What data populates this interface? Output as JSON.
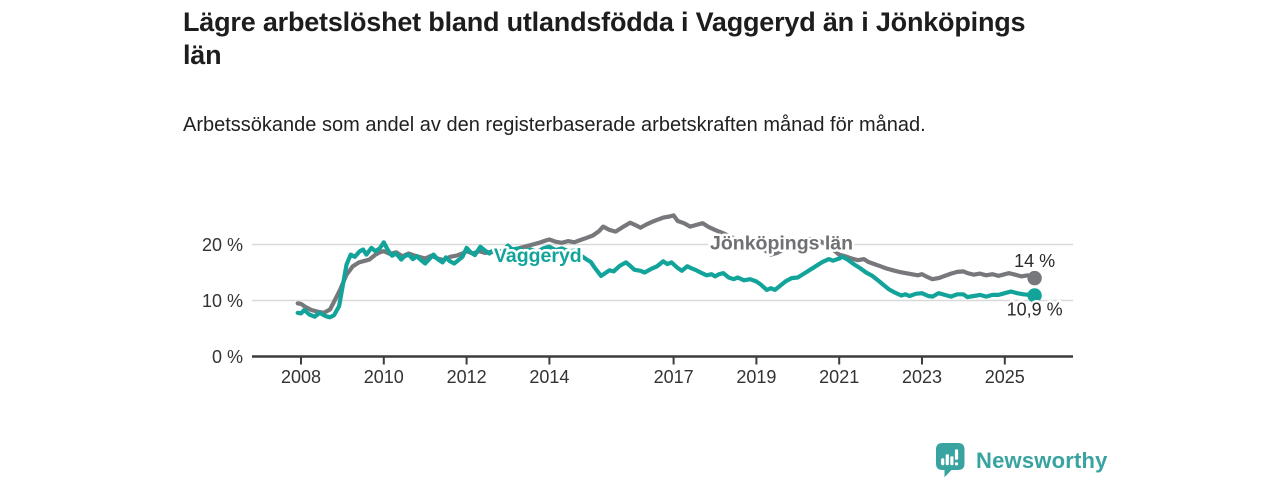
{
  "header": {
    "title": "Lägre arbetslöshet bland utlandsfödda i Vaggeryd än i Jönköpings län",
    "subtitle": "Arbetssökande som andel av den registerbaserade arbetskraften månad för månad."
  },
  "chart_data": {
    "type": "line",
    "title": "Lägre arbetslöshet bland utlandsfödda i Vaggeryd än i Jönköpings län",
    "subtitle": "Arbetssökande som andel av den registerbaserade arbetskraften månad för månad.",
    "x_unit": "year (monthly observations)",
    "y_unit": "percent",
    "xlim": [
      2007.9,
      2026.2
    ],
    "ylim": [
      0,
      27
    ],
    "grid": "horizontal",
    "legend_position": "inline-labels",
    "colors": {
      "gridline": "#d9d9d9",
      "axis": "#3c3c3c",
      "tick_text": "#333333",
      "annotation_text": "#2b2b2b"
    },
    "y_ticks": [
      {
        "value": 0,
        "label": "0 %"
      },
      {
        "value": 10,
        "label": "10 %"
      },
      {
        "value": 20,
        "label": "20 %"
      }
    ],
    "x_ticks": [
      {
        "value": 2008,
        "label": "2008"
      },
      {
        "value": 2010,
        "label": "2010"
      },
      {
        "value": 2012,
        "label": "2012"
      },
      {
        "value": 2014,
        "label": "2014"
      },
      {
        "value": 2017,
        "label": "2017"
      },
      {
        "value": 2019,
        "label": "2019"
      },
      {
        "value": 2021,
        "label": "2021"
      },
      {
        "value": 2023,
        "label": "2023"
      },
      {
        "value": 2025,
        "label": "2025"
      }
    ],
    "series": [
      {
        "name": "Jönköpings län",
        "color": "#77787b",
        "label_color": "#6f7073",
        "end_label": "14 %",
        "end_value": 14.0,
        "end_label_position": "above",
        "label_anchor": {
          "t": 2017.88,
          "v": 19.1
        },
        "points": [
          [
            2007.92,
            9.5
          ],
          [
            2008.0,
            9.4
          ],
          [
            2008.1,
            8.9
          ],
          [
            2008.25,
            8.3
          ],
          [
            2008.4,
            8.0
          ],
          [
            2008.55,
            7.8
          ],
          [
            2008.7,
            8.4
          ],
          [
            2008.8,
            9.8
          ],
          [
            2008.95,
            12.0
          ],
          [
            2009.1,
            14.6
          ],
          [
            2009.25,
            16.1
          ],
          [
            2009.4,
            16.8
          ],
          [
            2009.55,
            17.1
          ],
          [
            2009.65,
            17.3
          ],
          [
            2009.8,
            18.2
          ],
          [
            2009.9,
            18.6
          ],
          [
            2010.0,
            18.8
          ],
          [
            2010.15,
            18.3
          ],
          [
            2010.3,
            18.6
          ],
          [
            2010.45,
            17.9
          ],
          [
            2010.6,
            18.4
          ],
          [
            2010.75,
            18.0
          ],
          [
            2010.9,
            17.7
          ],
          [
            2011.0,
            17.5
          ],
          [
            2011.15,
            18.0
          ],
          [
            2011.3,
            17.5
          ],
          [
            2011.45,
            17.2
          ],
          [
            2011.6,
            17.8
          ],
          [
            2011.75,
            18.0
          ],
          [
            2011.9,
            18.4
          ],
          [
            2012.0,
            18.8
          ],
          [
            2012.15,
            18.4
          ],
          [
            2012.3,
            18.8
          ],
          [
            2012.45,
            18.5
          ],
          [
            2012.6,
            18.7
          ],
          [
            2012.75,
            18.5
          ],
          [
            2012.9,
            18.9
          ],
          [
            2013.0,
            19.4
          ],
          [
            2013.15,
            19.1
          ],
          [
            2013.3,
            19.4
          ],
          [
            2013.45,
            19.7
          ],
          [
            2013.6,
            20.0
          ],
          [
            2013.75,
            20.3
          ],
          [
            2013.9,
            20.7
          ],
          [
            2014.0,
            20.9
          ],
          [
            2014.15,
            20.5
          ],
          [
            2014.3,
            20.3
          ],
          [
            2014.45,
            20.6
          ],
          [
            2014.6,
            20.4
          ],
          [
            2014.75,
            20.8
          ],
          [
            2014.9,
            21.2
          ],
          [
            2015.05,
            21.6
          ],
          [
            2015.2,
            22.4
          ],
          [
            2015.3,
            23.2
          ],
          [
            2015.45,
            22.6
          ],
          [
            2015.6,
            22.3
          ],
          [
            2015.75,
            23.0
          ],
          [
            2015.95,
            23.9
          ],
          [
            2016.1,
            23.4
          ],
          [
            2016.2,
            23.0
          ],
          [
            2016.35,
            23.6
          ],
          [
            2016.5,
            24.1
          ],
          [
            2016.6,
            24.4
          ],
          [
            2016.75,
            24.8
          ],
          [
            2016.9,
            25.0
          ],
          [
            2017.0,
            25.2
          ],
          [
            2017.1,
            24.2
          ],
          [
            2017.25,
            23.8
          ],
          [
            2017.4,
            23.2
          ],
          [
            2017.55,
            23.5
          ],
          [
            2017.7,
            23.8
          ],
          [
            2017.85,
            23.1
          ],
          [
            2018.0,
            22.6
          ],
          [
            2018.2,
            22.0
          ],
          [
            2018.4,
            21.3
          ],
          [
            2018.6,
            20.6
          ],
          [
            2018.8,
            20.2
          ],
          [
            2019.0,
            19.8
          ],
          [
            2019.2,
            19.0
          ],
          [
            2019.35,
            18.2
          ],
          [
            2019.5,
            18.5
          ],
          [
            2019.7,
            19.3
          ],
          [
            2019.9,
            20.2
          ],
          [
            2020.1,
            20.8
          ],
          [
            2020.3,
            21.0
          ],
          [
            2020.5,
            20.7
          ],
          [
            2020.65,
            20.2
          ],
          [
            2020.8,
            19.4
          ],
          [
            2021.0,
            18.2
          ],
          [
            2021.15,
            17.9
          ],
          [
            2021.3,
            17.5
          ],
          [
            2021.45,
            17.2
          ],
          [
            2021.6,
            17.4
          ],
          [
            2021.7,
            16.9
          ],
          [
            2021.85,
            16.5
          ],
          [
            2022.0,
            16.1
          ],
          [
            2022.15,
            15.7
          ],
          [
            2022.3,
            15.4
          ],
          [
            2022.45,
            15.1
          ],
          [
            2022.6,
            14.9
          ],
          [
            2022.75,
            14.7
          ],
          [
            2022.9,
            14.5
          ],
          [
            2023.0,
            14.7
          ],
          [
            2023.1,
            14.3
          ],
          [
            2023.25,
            13.8
          ],
          [
            2023.4,
            14.0
          ],
          [
            2023.55,
            14.4
          ],
          [
            2023.7,
            14.8
          ],
          [
            2023.85,
            15.1
          ],
          [
            2024.0,
            15.2
          ],
          [
            2024.1,
            14.9
          ],
          [
            2024.25,
            14.6
          ],
          [
            2024.4,
            14.8
          ],
          [
            2024.55,
            14.5
          ],
          [
            2024.7,
            14.7
          ],
          [
            2024.85,
            14.4
          ],
          [
            2025.0,
            14.7
          ],
          [
            2025.1,
            14.9
          ],
          [
            2025.25,
            14.6
          ],
          [
            2025.4,
            14.3
          ],
          [
            2025.55,
            14.5
          ],
          [
            2025.72,
            14.0
          ]
        ]
      },
      {
        "name": "Vaggeryd",
        "color": "#12a49b",
        "label_color": "#12a49b",
        "end_label": "10,9 %",
        "end_value": 10.9,
        "end_label_position": "below",
        "label_anchor": {
          "t": 2012.66,
          "v": 16.9
        },
        "points": [
          [
            2007.92,
            7.8
          ],
          [
            2008.0,
            7.7
          ],
          [
            2008.08,
            8.3
          ],
          [
            2008.2,
            7.5
          ],
          [
            2008.33,
            7.1
          ],
          [
            2008.45,
            7.8
          ],
          [
            2008.6,
            7.2
          ],
          [
            2008.7,
            7.0
          ],
          [
            2008.8,
            7.4
          ],
          [
            2008.92,
            9.0
          ],
          [
            2009.0,
            12.3
          ],
          [
            2009.1,
            16.4
          ],
          [
            2009.2,
            18.2
          ],
          [
            2009.3,
            17.8
          ],
          [
            2009.42,
            18.8
          ],
          [
            2009.5,
            19.1
          ],
          [
            2009.58,
            18.2
          ],
          [
            2009.7,
            19.4
          ],
          [
            2009.8,
            18.8
          ],
          [
            2009.9,
            19.3
          ],
          [
            2010.0,
            20.4
          ],
          [
            2010.1,
            19.0
          ],
          [
            2010.2,
            18.0
          ],
          [
            2010.3,
            18.4
          ],
          [
            2010.42,
            17.3
          ],
          [
            2010.5,
            17.9
          ],
          [
            2010.6,
            18.2
          ],
          [
            2010.7,
            17.4
          ],
          [
            2010.8,
            17.9
          ],
          [
            2010.9,
            17.2
          ],
          [
            2011.0,
            16.6
          ],
          [
            2011.1,
            17.4
          ],
          [
            2011.2,
            18.2
          ],
          [
            2011.3,
            17.4
          ],
          [
            2011.42,
            16.8
          ],
          [
            2011.5,
            17.7
          ],
          [
            2011.6,
            17.0
          ],
          [
            2011.7,
            16.6
          ],
          [
            2011.8,
            17.2
          ],
          [
            2011.9,
            17.8
          ],
          [
            2012.0,
            19.4
          ],
          [
            2012.1,
            18.6
          ],
          [
            2012.2,
            18.1
          ],
          [
            2012.33,
            19.6
          ],
          [
            2012.45,
            18.9
          ],
          [
            2012.55,
            18.4
          ],
          [
            2012.67,
            19.2
          ],
          [
            2012.8,
            18.7
          ],
          [
            2012.92,
            19.2
          ],
          [
            2013.0,
            19.8
          ],
          [
            2013.1,
            19.1
          ],
          [
            2013.25,
            19.3
          ],
          [
            2013.4,
            18.8
          ],
          [
            2013.55,
            19.1
          ],
          [
            2013.7,
            18.6
          ],
          [
            2013.85,
            19.3
          ],
          [
            2014.0,
            19.6
          ],
          [
            2014.15,
            19.0
          ],
          [
            2014.3,
            19.3
          ],
          [
            2014.45,
            18.8
          ],
          [
            2014.6,
            18.9
          ],
          [
            2014.75,
            18.1
          ],
          [
            2014.9,
            17.3
          ],
          [
            2015.0,
            16.9
          ],
          [
            2015.1,
            15.8
          ],
          [
            2015.25,
            14.4
          ],
          [
            2015.35,
            14.9
          ],
          [
            2015.45,
            15.4
          ],
          [
            2015.55,
            15.2
          ],
          [
            2015.7,
            16.2
          ],
          [
            2015.85,
            16.8
          ],
          [
            2015.95,
            16.2
          ],
          [
            2016.05,
            15.5
          ],
          [
            2016.2,
            15.3
          ],
          [
            2016.3,
            15.0
          ],
          [
            2016.45,
            15.6
          ],
          [
            2016.6,
            16.1
          ],
          [
            2016.75,
            17.0
          ],
          [
            2016.85,
            16.5
          ],
          [
            2016.95,
            16.8
          ],
          [
            2017.1,
            15.8
          ],
          [
            2017.2,
            15.3
          ],
          [
            2017.33,
            16.1
          ],
          [
            2017.45,
            15.7
          ],
          [
            2017.55,
            15.4
          ],
          [
            2017.65,
            15.0
          ],
          [
            2017.8,
            14.5
          ],
          [
            2017.92,
            14.7
          ],
          [
            2018.0,
            14.3
          ],
          [
            2018.1,
            14.7
          ],
          [
            2018.2,
            14.9
          ],
          [
            2018.33,
            14.1
          ],
          [
            2018.45,
            13.8
          ],
          [
            2018.55,
            14.1
          ],
          [
            2018.7,
            13.6
          ],
          [
            2018.85,
            13.8
          ],
          [
            2019.0,
            13.4
          ],
          [
            2019.1,
            12.9
          ],
          [
            2019.25,
            11.9
          ],
          [
            2019.35,
            12.2
          ],
          [
            2019.45,
            11.9
          ],
          [
            2019.55,
            12.5
          ],
          [
            2019.7,
            13.4
          ],
          [
            2019.85,
            14.0
          ],
          [
            2020.0,
            14.1
          ],
          [
            2020.15,
            14.8
          ],
          [
            2020.3,
            15.5
          ],
          [
            2020.45,
            16.2
          ],
          [
            2020.6,
            16.9
          ],
          [
            2020.75,
            17.4
          ],
          [
            2020.85,
            17.1
          ],
          [
            2021.0,
            17.5
          ],
          [
            2021.08,
            17.8
          ],
          [
            2021.2,
            17.3
          ],
          [
            2021.35,
            16.5
          ],
          [
            2021.5,
            15.8
          ],
          [
            2021.65,
            15.0
          ],
          [
            2021.8,
            14.4
          ],
          [
            2021.92,
            13.7
          ],
          [
            2022.05,
            12.9
          ],
          [
            2022.2,
            12.0
          ],
          [
            2022.35,
            11.4
          ],
          [
            2022.5,
            10.9
          ],
          [
            2022.6,
            11.1
          ],
          [
            2022.7,
            10.8
          ],
          [
            2022.85,
            11.2
          ],
          [
            2023.0,
            11.3
          ],
          [
            2023.15,
            10.8
          ],
          [
            2023.25,
            10.7
          ],
          [
            2023.4,
            11.3
          ],
          [
            2023.55,
            11.0
          ],
          [
            2023.7,
            10.7
          ],
          [
            2023.85,
            11.1
          ],
          [
            2024.0,
            11.1
          ],
          [
            2024.1,
            10.6
          ],
          [
            2024.25,
            10.8
          ],
          [
            2024.4,
            11.0
          ],
          [
            2024.55,
            10.7
          ],
          [
            2024.7,
            11.0
          ],
          [
            2024.85,
            11.0
          ],
          [
            2025.0,
            11.3
          ],
          [
            2025.15,
            11.6
          ],
          [
            2025.3,
            11.3
          ],
          [
            2025.45,
            11.1
          ],
          [
            2025.6,
            11.0
          ],
          [
            2025.72,
            10.9
          ]
        ]
      }
    ]
  },
  "footer": {
    "brand": "Newsworthy",
    "logo_color": "#38a3a0",
    "logo_icon": "bar-chart-speech-bubble"
  }
}
